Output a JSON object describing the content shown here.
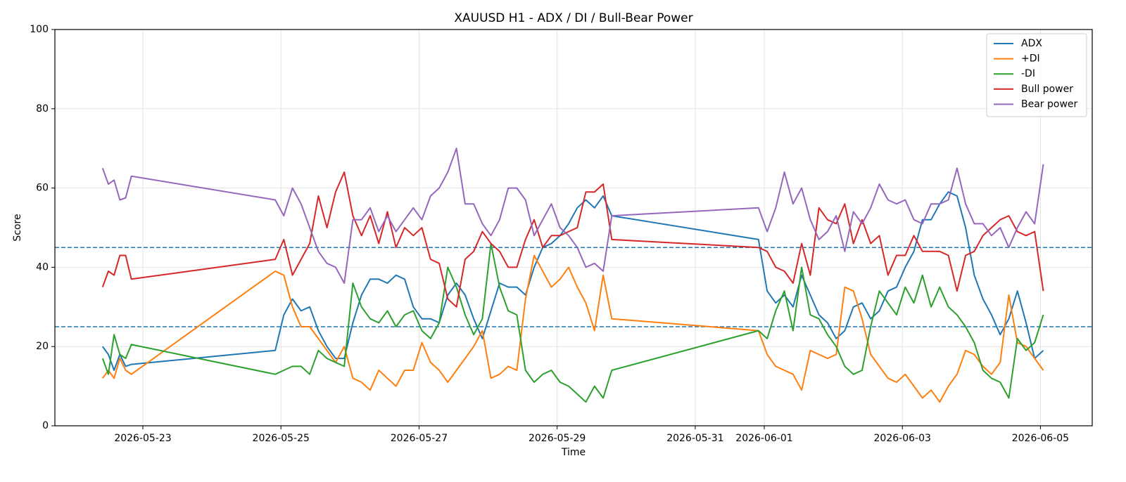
{
  "chart_data": {
    "type": "line",
    "title": "XAUUSD H1 - ADX / DI / Bull-Bear Power",
    "xlabel": "Time",
    "ylabel": "Score",
    "x": [
      "2026-05-22 10:00",
      "2026-05-22 12:00",
      "2026-05-22 14:00",
      "2026-05-22 16:00",
      "2026-05-22 18:00",
      "2026-05-22 20:00",
      "2026-05-24 22:00",
      "2026-05-25 01:00",
      "2026-05-25 04:00",
      "2026-05-25 07:00",
      "2026-05-25 10:00",
      "2026-05-25 13:00",
      "2026-05-25 16:00",
      "2026-05-25 19:00",
      "2026-05-25 22:00",
      "2026-05-26 01:00",
      "2026-05-26 04:00",
      "2026-05-26 07:00",
      "2026-05-26 10:00",
      "2026-05-26 13:00",
      "2026-05-26 16:00",
      "2026-05-26 19:00",
      "2026-05-26 22:00",
      "2026-05-27 01:00",
      "2026-05-27 04:00",
      "2026-05-27 07:00",
      "2026-05-27 10:00",
      "2026-05-27 13:00",
      "2026-05-27 16:00",
      "2026-05-27 19:00",
      "2026-05-27 22:00",
      "2026-05-28 01:00",
      "2026-05-28 04:00",
      "2026-05-28 07:00",
      "2026-05-28 10:00",
      "2026-05-28 13:00",
      "2026-05-28 16:00",
      "2026-05-28 19:00",
      "2026-05-28 22:00",
      "2026-05-29 01:00",
      "2026-05-29 04:00",
      "2026-05-29 07:00",
      "2026-05-29 10:00",
      "2026-05-29 13:00",
      "2026-05-29 16:00",
      "2026-05-29 19:00",
      "2026-05-31 22:00",
      "2026-06-01 01:00",
      "2026-06-01 04:00",
      "2026-06-01 07:00",
      "2026-06-01 10:00",
      "2026-06-01 13:00",
      "2026-06-01 16:00",
      "2026-06-01 19:00",
      "2026-06-01 22:00",
      "2026-06-02 01:00",
      "2026-06-02 04:00",
      "2026-06-02 07:00",
      "2026-06-02 10:00",
      "2026-06-02 13:00",
      "2026-06-02 16:00",
      "2026-06-02 19:00",
      "2026-06-02 22:00",
      "2026-06-03 01:00",
      "2026-06-03 04:00",
      "2026-06-03 07:00",
      "2026-06-03 10:00",
      "2026-06-03 13:00",
      "2026-06-03 16:00",
      "2026-06-03 19:00",
      "2026-06-03 22:00",
      "2026-06-04 01:00",
      "2026-06-04 04:00",
      "2026-06-04 07:00",
      "2026-06-04 10:00",
      "2026-06-04 13:00",
      "2026-06-04 16:00",
      "2026-06-04 19:00",
      "2026-06-04 22:00",
      "2026-06-05 01:00"
    ],
    "series": [
      {
        "name": "ADX",
        "color": "#1f77b4",
        "values": [
          20,
          18,
          14,
          18,
          15,
          15.5,
          19,
          28,
          32,
          29,
          30,
          24,
          20,
          17,
          17,
          26,
          33,
          37,
          37,
          36,
          38,
          37,
          30,
          27,
          27,
          26,
          33,
          36,
          33,
          27,
          22,
          29,
          36,
          35,
          35,
          33,
          40,
          45,
          46,
          48,
          51,
          55,
          57,
          55,
          58,
          53,
          47,
          34,
          31,
          33,
          30,
          38,
          33,
          28,
          26,
          22,
          24,
          30,
          31,
          27,
          29,
          34,
          35,
          40,
          44,
          52,
          52,
          56,
          59,
          58,
          50,
          38,
          32,
          28,
          23,
          27,
          34,
          26,
          17,
          19
        ]
      },
      {
        "name": "+DI",
        "color": "#ff7f0e",
        "values": [
          12,
          14,
          12,
          17,
          14,
          13,
          39,
          38,
          30,
          25,
          25,
          22,
          19,
          16,
          20,
          12,
          11,
          9,
          14,
          12,
          10,
          14,
          14,
          21,
          16,
          14,
          11,
          14,
          17,
          20,
          24,
          12,
          13,
          15,
          14,
          32,
          43,
          39,
          35,
          37,
          40,
          35,
          31,
          24,
          38,
          27,
          24,
          18,
          15,
          14,
          13,
          9,
          19,
          18,
          17,
          18,
          35,
          34,
          27,
          18,
          15,
          12,
          11,
          13,
          10,
          7,
          9,
          6,
          10,
          13,
          19,
          18,
          15,
          13,
          16,
          33,
          21,
          20,
          17,
          14
        ]
      },
      {
        "name": "-DI",
        "color": "#2ca02c",
        "values": [
          17,
          13,
          23,
          18,
          17,
          20.5,
          13,
          14,
          15,
          15,
          13,
          19,
          17,
          16,
          15,
          36,
          30,
          27,
          26,
          29,
          25,
          28,
          29,
          24,
          22,
          26,
          40,
          35,
          28,
          23,
          27,
          46,
          35,
          29,
          28,
          14,
          11,
          13,
          14,
          11,
          10,
          8,
          6,
          10,
          7,
          14,
          24,
          22,
          29,
          34,
          24,
          40,
          28,
          27,
          23,
          20,
          15,
          13,
          14,
          25,
          34,
          31,
          28,
          35,
          31,
          38,
          30,
          35,
          30,
          28,
          25,
          21,
          14,
          12,
          11,
          7,
          22,
          19,
          21,
          28
        ]
      },
      {
        "name": "Bull power",
        "color": "#d62728",
        "values": [
          35,
          39,
          38,
          43,
          43,
          37,
          42,
          47,
          38,
          42,
          46,
          58,
          50,
          59,
          64,
          53,
          48,
          53,
          46,
          54,
          45,
          50,
          48,
          50,
          42,
          41,
          32,
          30,
          42,
          44,
          49,
          46,
          44,
          40,
          40,
          47,
          52,
          45,
          48,
          48,
          49,
          50,
          59,
          59,
          61,
          47,
          45,
          44,
          40,
          39,
          36,
          46,
          38,
          55,
          52,
          51,
          56,
          46,
          52,
          46,
          48,
          38,
          43,
          43,
          48,
          44,
          44,
          44,
          43,
          34,
          43,
          44,
          48,
          50,
          52,
          53,
          49,
          48,
          49,
          34
        ]
      },
      {
        "name": "Bear power",
        "color": "#9467bd",
        "values": [
          65,
          61,
          62,
          57,
          57.5,
          63,
          57,
          53,
          60,
          56,
          50,
          44,
          41,
          40,
          36,
          52,
          52,
          55,
          49,
          53,
          49,
          52,
          55,
          52,
          58,
          60,
          64,
          70,
          56,
          56,
          51,
          48,
          52,
          60,
          60,
          57,
          48,
          52,
          56,
          50,
          48,
          45,
          40,
          41,
          39,
          53,
          55,
          49,
          55,
          64,
          56,
          60,
          52,
          47,
          49,
          53,
          44,
          54,
          51,
          55,
          61,
          57,
          56,
          57,
          52,
          51,
          56,
          56,
          57,
          65,
          56,
          51,
          51,
          48,
          50,
          45,
          50,
          54,
          51,
          66
        ]
      }
    ],
    "hlines": [
      45,
      25
    ],
    "hline_color": "#1f77b4",
    "xlim": [
      "2026-05-21 17:25",
      "2026-06-05 18:00"
    ],
    "xticks": [
      "2026-05-23",
      "2026-05-25",
      "2026-05-27",
      "2026-05-29",
      "2026-05-31",
      "2026-06-01",
      "2026-06-03",
      "2026-06-05"
    ],
    "ylim": [
      0,
      100
    ],
    "yticks": [
      0,
      20,
      40,
      60,
      80,
      100
    ],
    "grid": true,
    "legend": "upper right"
  }
}
